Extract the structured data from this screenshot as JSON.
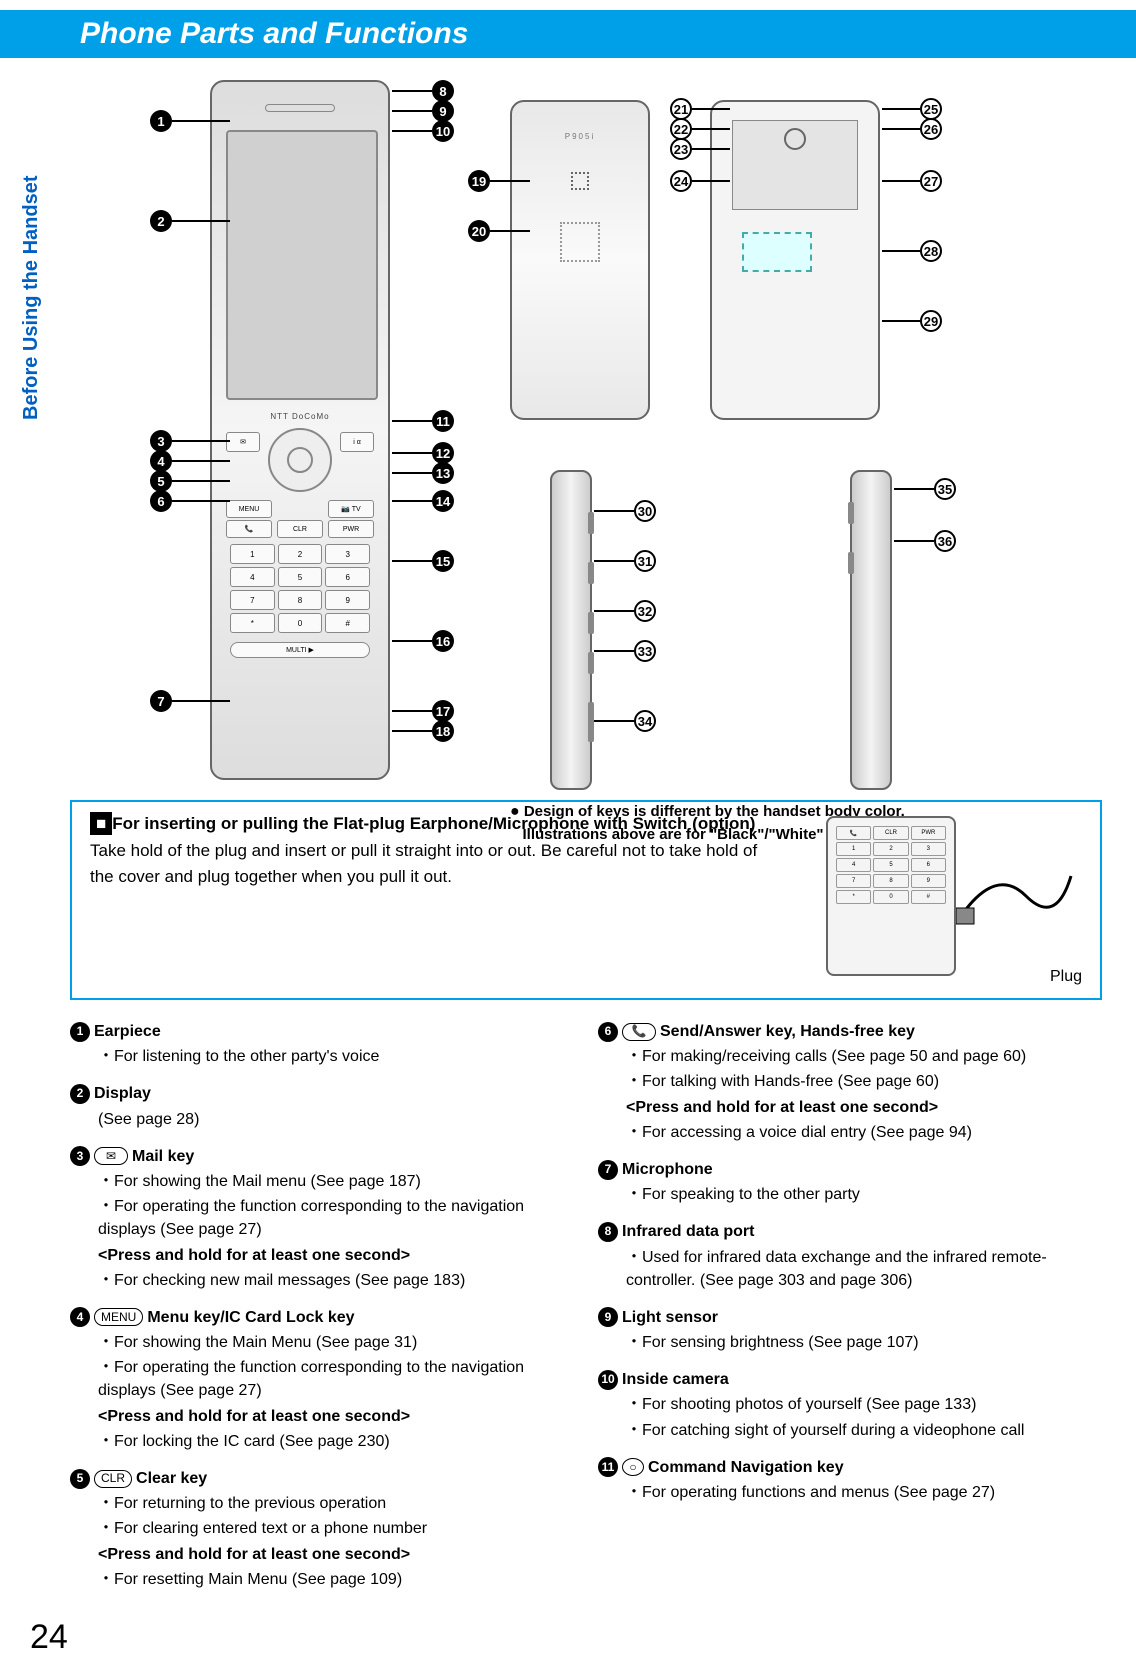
{
  "page": {
    "title": "Phone Parts and Functions",
    "side_label": "Before Using the Handset",
    "page_number": "24"
  },
  "colors": {
    "cyan": "#00a0e9",
    "side_text": "#0060c0"
  },
  "phone": {
    "brand": "NTT DoCoMo",
    "closed_model": "P905i"
  },
  "diagram_note": {
    "bullet": "●",
    "line1": "Design of keys is different by the handset body color.",
    "line2": "Illustrations above are for \"Black\"/\"White\" handset."
  },
  "info_box": {
    "heading_prefix": "■",
    "heading": "For inserting or pulling the Flat-plug Earphone/Microphone with Switch (option)",
    "body": "Take hold of the plug and insert or pull it straight into or out. Be careful not to take hold of the cover and plug together when you pull it out.",
    "plug_label": "Plug"
  },
  "callouts_black": [
    "1",
    "2",
    "3",
    "4",
    "5",
    "6",
    "7",
    "8",
    "9",
    "10",
    "11",
    "12",
    "13",
    "14",
    "15",
    "16",
    "17",
    "18",
    "19",
    "20"
  ],
  "callouts_white": [
    "21",
    "22",
    "23",
    "24",
    "25",
    "26",
    "27",
    "28",
    "29",
    "30",
    "31",
    "32",
    "33",
    "34",
    "35",
    "36"
  ],
  "keycaps": {
    "mail": "✉",
    "menu": "MENU",
    "clr": "CLR",
    "send": "📞",
    "cmd": "○"
  },
  "desc_left": [
    {
      "num": "1",
      "title": "Earpiece",
      "lines": [
        "・For listening to the other party's voice"
      ]
    },
    {
      "num": "2",
      "title": "Display",
      "lines": [
        "(See page 28)"
      ]
    },
    {
      "num": "3",
      "keycap": "mail",
      "title": " Mail key",
      "lines": [
        "・For showing the Mail menu (See page 187)",
        "・For operating the function corresponding to the navigation displays (See page 27)"
      ],
      "hold": "<Press and hold for at least one second>",
      "hold_lines": [
        "・For checking new mail messages (See page 183)"
      ]
    },
    {
      "num": "4",
      "keycap": "menu",
      "title": " Menu key/IC Card Lock key",
      "lines": [
        "・For showing the Main Menu (See page 31)",
        "・For operating the function corresponding to the navigation displays (See page 27)"
      ],
      "hold": "<Press and hold for at least one second>",
      "hold_lines": [
        "・For locking the IC card (See page 230)"
      ]
    },
    {
      "num": "5",
      "keycap": "clr",
      "title": " Clear key",
      "lines": [
        "・For returning to the previous operation",
        "・For clearing entered text or a phone number"
      ],
      "hold": "<Press and hold for at least one second>",
      "hold_lines": [
        "・For resetting Main Menu (See page 109)"
      ]
    }
  ],
  "desc_right": [
    {
      "num": "6",
      "keycap": "send",
      "title": " Send/Answer key, Hands-free key",
      "lines": [
        "・For making/receiving calls (See page 50 and page 60)",
        "・For talking with Hands-free (See page 60)"
      ],
      "hold": "<Press and hold for at least one second>",
      "hold_lines": [
        "・For accessing a voice dial entry (See page 94)"
      ]
    },
    {
      "num": "7",
      "title": "Microphone",
      "lines": [
        "・For speaking to the other party"
      ]
    },
    {
      "num": "8",
      "title": "Infrared data port",
      "lines": [
        "・Used for infrared data exchange and the infrared remote-controller. (See page 303 and page 306)"
      ]
    },
    {
      "num": "9",
      "title": "Light sensor",
      "lines": [
        "・For sensing brightness (See page 107)"
      ]
    },
    {
      "num": "10",
      "title": "Inside camera",
      "lines": [
        "・For shooting photos of yourself (See page 133)",
        "・For catching sight of yourself during a videophone call"
      ]
    },
    {
      "num": "11",
      "keycap": "cmd",
      "title": " Command Navigation key",
      "lines": [
        "・For operating functions and menus (See page 27)"
      ]
    }
  ]
}
